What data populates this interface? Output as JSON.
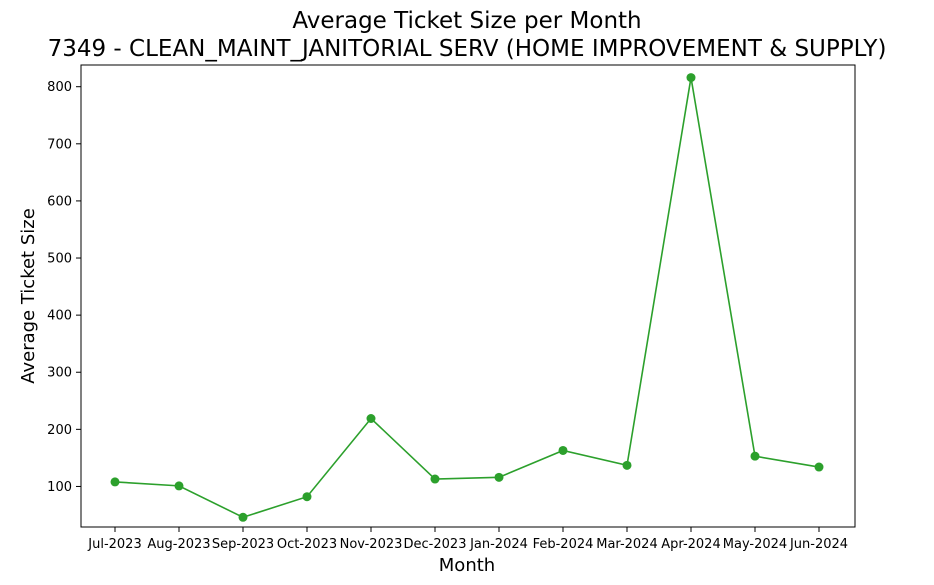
{
  "chart_data": {
    "type": "line",
    "title": "Average Ticket Size per Month",
    "subtitle": "7349 - CLEAN_MAINT_JANITORIAL SERV (HOME IMPROVEMENT & SUPPLY)",
    "xlabel": "Month",
    "ylabel": "Average Ticket Size",
    "categories": [
      "Jul-2023",
      "Aug-2023",
      "Sep-2023",
      "Oct-2023",
      "Nov-2023",
      "Dec-2023",
      "Jan-2024",
      "Feb-2024",
      "Mar-2024",
      "Apr-2024",
      "May-2024",
      "Jun-2024"
    ],
    "series": [
      {
        "values": [
          108,
          101,
          46,
          82,
          219,
          113,
          116,
          163,
          137,
          816,
          153,
          134
        ],
        "color": "#2ca02c",
        "marker": "circle"
      }
    ],
    "ylim": [
      29,
      838
    ],
    "yticks": [
      100,
      200,
      300,
      400,
      500,
      600,
      700,
      800
    ],
    "grid": false,
    "legend": "none"
  }
}
